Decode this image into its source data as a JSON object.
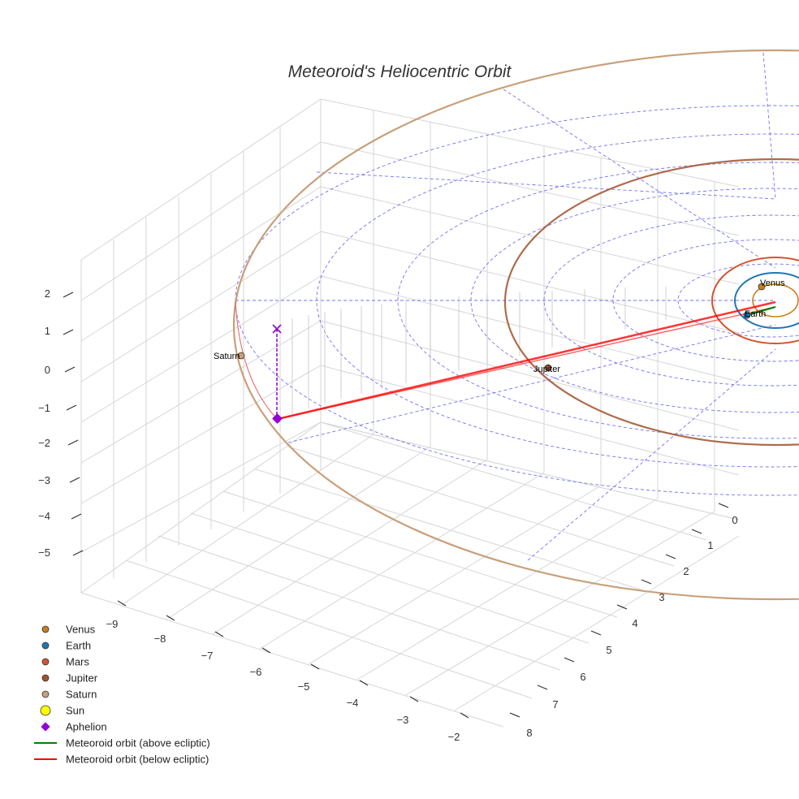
{
  "chart_data": {
    "type": "3d-line",
    "title": "Meteoroid's Heliocentric Orbit",
    "axes": {
      "x_ticks": [
        "−9",
        "−8",
        "−7",
        "−6",
        "−5",
        "−4",
        "−3",
        "−2"
      ],
      "y_ticks": [
        "0",
        "1",
        "2",
        "3",
        "4",
        "5",
        "6",
        "7",
        "8"
      ],
      "z_ticks": [
        "2",
        "1",
        "0",
        "−1",
        "−2",
        "−3",
        "−4",
        "−5"
      ]
    },
    "planets": [
      {
        "name": "Venus",
        "color": "#c87f1e"
      },
      {
        "name": "Earth",
        "color": "#1f77b4"
      },
      {
        "name": "Mars",
        "color": "#d2552c"
      },
      {
        "name": "Jupiter",
        "color": "#a0522d"
      },
      {
        "name": "Saturn",
        "color": "#c8a07a"
      }
    ],
    "point_labels": [
      "Venus",
      "Earth",
      "Jupiter",
      "Saturn"
    ],
    "sun_color": "#ffff00",
    "aphelion_color": "#9400d3",
    "meteoroid_above_color": "#008000",
    "meteoroid_below_color": "#ff0000",
    "legend": [
      {
        "label": "Venus",
        "kind": "dot",
        "color": "#c87f1e"
      },
      {
        "label": "Earth",
        "kind": "dot",
        "color": "#1f77b4"
      },
      {
        "label": "Mars",
        "kind": "dot",
        "color": "#d2552c"
      },
      {
        "label": "Jupiter",
        "kind": "dot",
        "color": "#a0522d"
      },
      {
        "label": "Saturn",
        "kind": "dot",
        "color": "#c8a07a"
      },
      {
        "label": "Sun",
        "kind": "sun",
        "color": "#ffff00"
      },
      {
        "label": "Aphelion",
        "kind": "diamond",
        "color": "#9400d3"
      },
      {
        "label": "Meteoroid orbit (above ecliptic)",
        "kind": "line",
        "color": "#008000"
      },
      {
        "label": "Meteoroid orbit (below ecliptic)",
        "kind": "line",
        "color": "#ff0000"
      }
    ]
  }
}
